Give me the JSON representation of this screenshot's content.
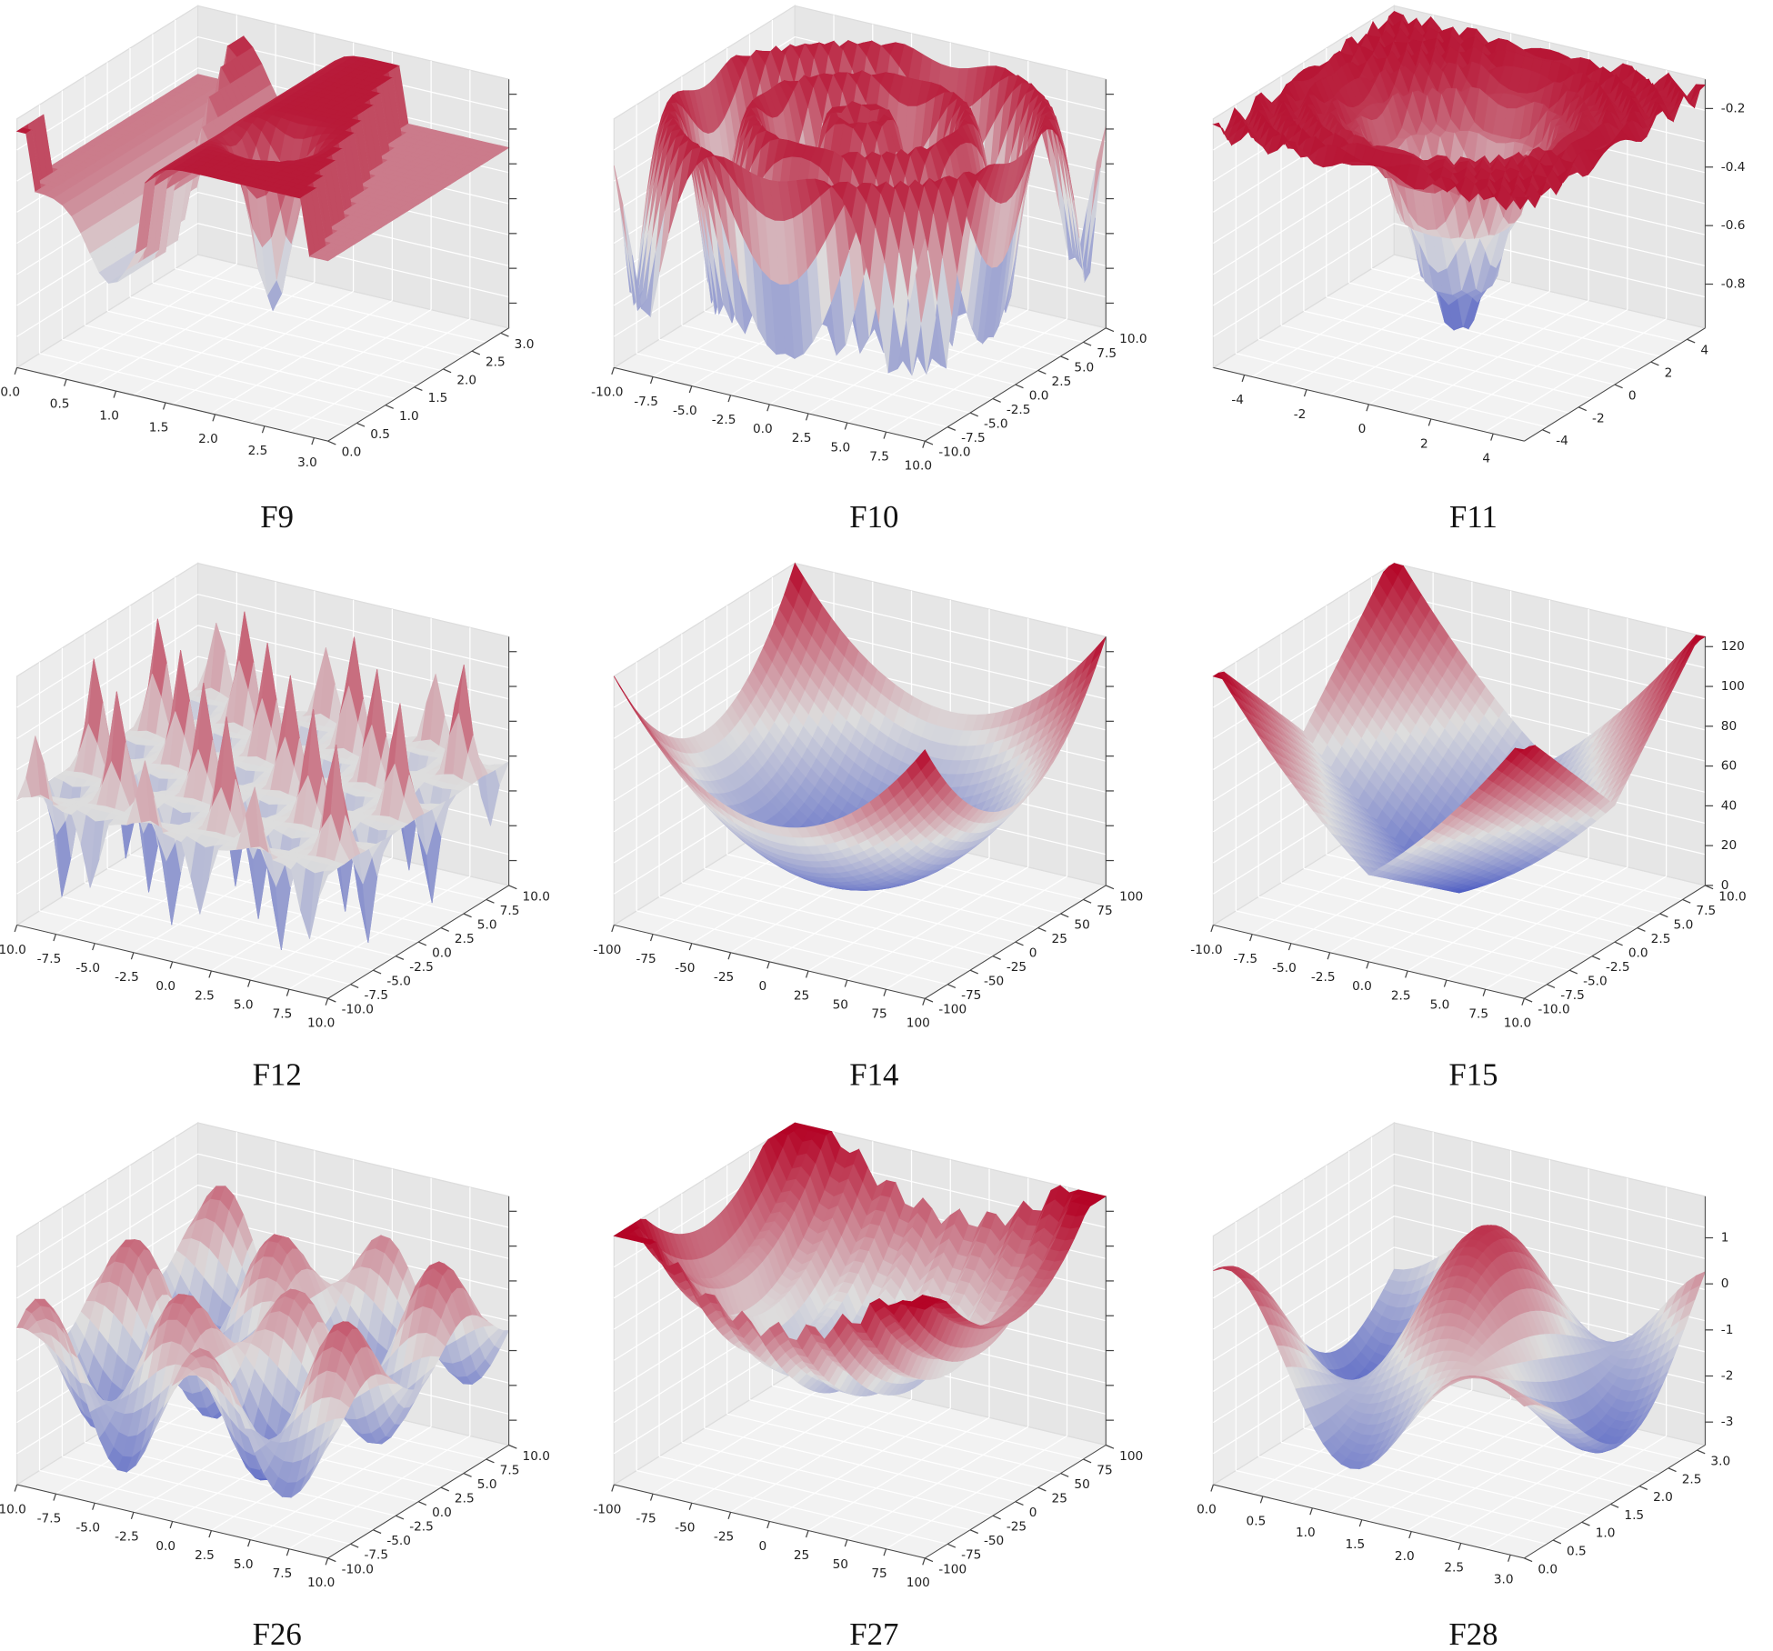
{
  "chart_data": [
    {
      "type": "surface",
      "title": "F9",
      "xlim": [
        0,
        3.14
      ],
      "xticks": [
        {
          "value": 0,
          "label": "0.0"
        },
        0.5,
        {
          "value": 1,
          "label": "1.0"
        },
        1.5,
        {
          "value": 2,
          "label": "2.0"
        },
        2.5,
        {
          "value": 3,
          "label": "3.0"
        }
      ],
      "ylim": [
        0,
        3.14
      ],
      "yticks": [
        {
          "value": 0,
          "label": "0.0"
        },
        0.5,
        {
          "value": 1,
          "label": "1.0"
        },
        1.5,
        {
          "value": 2,
          "label": "2.0"
        },
        2.5,
        {
          "value": 3,
          "label": "3.0"
        }
      ]
    },
    {
      "type": "surface",
      "title": "F10",
      "xlim": [
        -10,
        10
      ],
      "xticks": [
        {
          "value": -10,
          "label": "-10.0"
        },
        -7.5,
        {
          "value": -5,
          "label": "-5.0"
        },
        -2.5,
        {
          "value": 0,
          "label": "0.0"
        },
        2.5,
        {
          "value": 5,
          "label": "5.0"
        },
        7.5,
        {
          "value": 10,
          "label": "10.0"
        }
      ],
      "ylim": [
        -10,
        10
      ],
      "yticks": [
        {
          "value": -10,
          "label": "-10.0"
        },
        -7.5,
        {
          "value": -5,
          "label": "-5.0"
        },
        -2.5,
        {
          "value": 0,
          "label": "0.0"
        },
        2.5,
        {
          "value": 5,
          "label": "5.0"
        },
        7.5,
        {
          "value": 10,
          "label": "10.0"
        }
      ]
    },
    {
      "type": "surface",
      "title": "F11",
      "xlim": [
        -5,
        5
      ],
      "xticks": [
        -4,
        -2,
        0,
        2,
        4
      ],
      "ylim": [
        -5,
        5
      ],
      "yticks": [
        -4,
        -2,
        0,
        2,
        4
      ],
      "zlim": [
        -0.95,
        -0.1
      ],
      "zticks": [
        -0.2,
        -0.4,
        -0.6,
        -0.8
      ]
    },
    {
      "type": "surface",
      "title": "F12",
      "xlim": [
        -10,
        10
      ],
      "xticks": [
        {
          "value": -10,
          "label": "-10.0"
        },
        -7.5,
        {
          "value": -5,
          "label": "-5.0"
        },
        -2.5,
        {
          "value": 0,
          "label": "0.0"
        },
        2.5,
        {
          "value": 5,
          "label": "5.0"
        },
        7.5,
        {
          "value": 10,
          "label": "10.0"
        }
      ],
      "ylim": [
        -10,
        10
      ],
      "yticks": [
        {
          "value": -10,
          "label": "-10.0"
        },
        -7.5,
        {
          "value": -5,
          "label": "-5.0"
        },
        -2.5,
        {
          "value": 0,
          "label": "0.0"
        },
        2.5,
        {
          "value": 5,
          "label": "5.0"
        },
        7.5,
        {
          "value": 10,
          "label": "10.0"
        }
      ]
    },
    {
      "type": "surface",
      "title": "F14",
      "xlim": [
        -100,
        100
      ],
      "xticks": [
        -100,
        -75,
        -50,
        -25,
        0,
        25,
        50,
        75,
        100
      ],
      "ylim": [
        -100,
        100
      ],
      "yticks": [
        -100,
        -75,
        -50,
        -25,
        0,
        25,
        50,
        75,
        100
      ]
    },
    {
      "type": "surface",
      "title": "F15",
      "xlim": [
        -10,
        10
      ],
      "xticks": [
        {
          "value": -10,
          "label": "-10.0"
        },
        -7.5,
        {
          "value": -5,
          "label": "-5.0"
        },
        -2.5,
        {
          "value": 0,
          "label": "0.0"
        },
        2.5,
        {
          "value": 5,
          "label": "5.0"
        },
        7.5,
        {
          "value": 10,
          "label": "10.0"
        }
      ],
      "ylim": [
        -10,
        10
      ],
      "yticks": [
        {
          "value": -10,
          "label": "-10.0"
        },
        -7.5,
        {
          "value": -5,
          "label": "-5.0"
        },
        -2.5,
        {
          "value": 0,
          "label": "0.0"
        },
        2.5,
        {
          "value": 5,
          "label": "5.0"
        },
        7.5,
        {
          "value": 10,
          "label": "10.0"
        }
      ],
      "zlim": [
        0,
        125
      ],
      "zticks": [
        0,
        20,
        40,
        60,
        80,
        100,
        120
      ]
    },
    {
      "type": "surface",
      "title": "F26",
      "xlim": [
        -10,
        10
      ],
      "xticks": [
        {
          "value": -10,
          "label": "-10.0"
        },
        -7.5,
        {
          "value": -5,
          "label": "-5.0"
        },
        -2.5,
        {
          "value": 0,
          "label": "0.0"
        },
        2.5,
        {
          "value": 5,
          "label": "5.0"
        },
        7.5,
        {
          "value": 10,
          "label": "10.0"
        }
      ],
      "ylim": [
        -10,
        10
      ],
      "yticks": [
        {
          "value": -10,
          "label": "-10.0"
        },
        -7.5,
        {
          "value": -5,
          "label": "-5.0"
        },
        -2.5,
        {
          "value": 0,
          "label": "0.0"
        },
        2.5,
        {
          "value": 5,
          "label": "5.0"
        },
        7.5,
        {
          "value": 10,
          "label": "10.0"
        }
      ]
    },
    {
      "type": "surface",
      "title": "F27",
      "xlim": [
        -100,
        100
      ],
      "xticks": [
        -100,
        -75,
        -50,
        -25,
        0,
        25,
        50,
        75,
        100
      ],
      "ylim": [
        -100,
        100
      ],
      "yticks": [
        -100,
        -75,
        -50,
        -25,
        0,
        25,
        50,
        75,
        100
      ]
    },
    {
      "type": "surface",
      "title": "F28",
      "xlim": [
        0,
        3.14
      ],
      "xticks": [
        {
          "value": 0,
          "label": "0.0"
        },
        0.5,
        {
          "value": 1,
          "label": "1.0"
        },
        1.5,
        {
          "value": 2,
          "label": "2.0"
        },
        2.5,
        {
          "value": 3,
          "label": "3.0"
        }
      ],
      "ylim": [
        0,
        3.14
      ],
      "yticks": [
        {
          "value": 0,
          "label": "0.0"
        },
        0.5,
        {
          "value": 1,
          "label": "1.0"
        },
        1.5,
        {
          "value": 2,
          "label": "2.0"
        },
        2.5,
        {
          "value": 3,
          "label": "3.0"
        }
      ],
      "zlim": [
        -3.5,
        1.9
      ],
      "zticks": [
        1,
        0,
        -1,
        -2,
        -3
      ]
    }
  ]
}
